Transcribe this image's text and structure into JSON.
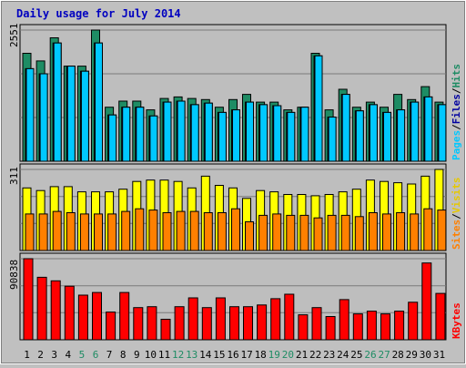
{
  "title": "Daily usage for July 2014",
  "colors": {
    "background": "#c0c0c0",
    "plot_bg": "#bebebe",
    "title": "#0000c0",
    "hits": "#1e8c64",
    "files": "#00c8ff",
    "pages": "#0000a0",
    "sites": "#ff8000",
    "visits": "#ffff00",
    "kbytes": "#ff0000",
    "weekend_label": "#1e8c64",
    "weekday_label": "#000000",
    "grid": "#7a7a7a"
  },
  "panels": {
    "top": {
      "max_label": "2551",
      "legend": [
        "Pages",
        "/",
        "Files",
        "/",
        "Hits"
      ]
    },
    "middle": {
      "max_label": "311",
      "legend": [
        "Sites",
        "/",
        "Visits"
      ]
    },
    "bottom": {
      "max_label": "90838",
      "legend": [
        "KBytes"
      ]
    }
  },
  "chart_data": [
    {
      "type": "bar",
      "title": "Daily usage for July 2014",
      "categories": [
        "1",
        "2",
        "3",
        "4",
        "5",
        "6",
        "7",
        "8",
        "9",
        "10",
        "11",
        "12",
        "13",
        "14",
        "15",
        "16",
        "17",
        "18",
        "19",
        "20",
        "21",
        "22",
        "23",
        "24",
        "25",
        "26",
        "27",
        "28",
        "29",
        "30",
        "31"
      ],
      "weekend_days": [
        "5",
        "6",
        "12",
        "13",
        "19",
        "20",
        "26",
        "27"
      ],
      "ylim": [
        0,
        2551
      ],
      "series": [
        {
          "name": "Hits",
          "values": [
            2100,
            1950,
            2400,
            1850,
            1850,
            2551,
            1050,
            1170,
            1170,
            1000,
            1220,
            1250,
            1220,
            1200,
            1050,
            1200,
            1300,
            1150,
            1150,
            1000,
            1050,
            2100,
            1000,
            1400,
            1050,
            1150,
            1050,
            1300,
            1200,
            1450,
            1150
          ]
        },
        {
          "name": "Files",
          "values": [
            1800,
            1700,
            2300,
            1850,
            1750,
            2300,
            900,
            1050,
            1050,
            880,
            1150,
            1170,
            1100,
            1130,
            950,
            1000,
            1150,
            1100,
            1080,
            950,
            1050,
            2050,
            860,
            1300,
            980,
            1100,
            950,
            1000,
            1150,
            1250,
            1100
          ]
        },
        {
          "name": "Pages",
          "values": [
            1800,
            1700,
            2300,
            1850,
            1750,
            2300,
            900,
            1050,
            1050,
            880,
            1150,
            1170,
            1100,
            1130,
            950,
            1000,
            1150,
            1100,
            1080,
            950,
            1050,
            2050,
            860,
            1300,
            980,
            1100,
            950,
            1000,
            1150,
            1250,
            1100
          ]
        }
      ]
    },
    {
      "type": "bar",
      "categories": [
        "1",
        "2",
        "3",
        "4",
        "5",
        "6",
        "7",
        "8",
        "9",
        "10",
        "11",
        "12",
        "13",
        "14",
        "15",
        "16",
        "17",
        "18",
        "19",
        "20",
        "21",
        "22",
        "23",
        "24",
        "25",
        "26",
        "27",
        "28",
        "29",
        "30",
        "31"
      ],
      "ylim": [
        0,
        311
      ],
      "series": [
        {
          "name": "Visits",
          "values": [
            240,
            230,
            245,
            245,
            225,
            225,
            225,
            235,
            265,
            270,
            270,
            265,
            240,
            285,
            250,
            240,
            200,
            230,
            225,
            215,
            215,
            210,
            215,
            225,
            235,
            270,
            265,
            260,
            255,
            285,
            311
          ]
        },
        {
          "name": "Sites",
          "values": [
            140,
            140,
            150,
            145,
            140,
            140,
            140,
            150,
            160,
            155,
            145,
            150,
            150,
            145,
            145,
            160,
            110,
            135,
            140,
            135,
            135,
            125,
            135,
            135,
            130,
            145,
            140,
            145,
            140,
            160,
            155
          ]
        }
      ]
    },
    {
      "type": "bar",
      "categories": [
        "1",
        "2",
        "3",
        "4",
        "5",
        "6",
        "7",
        "8",
        "9",
        "10",
        "11",
        "12",
        "13",
        "14",
        "15",
        "16",
        "17",
        "18",
        "19",
        "20",
        "21",
        "22",
        "23",
        "24",
        "25",
        "26",
        "27",
        "28",
        "29",
        "30",
        "31"
      ],
      "ylim": [
        0,
        90838
      ],
      "series": [
        {
          "name": "KBytes",
          "values": [
            90838,
            70000,
            66000,
            60000,
            50000,
            53000,
            31000,
            53000,
            36000,
            37000,
            23000,
            37000,
            47000,
            36000,
            47000,
            37000,
            37000,
            39000,
            46000,
            51000,
            28000,
            36000,
            26000,
            45000,
            29000,
            32000,
            29000,
            32000,
            42000,
            86000,
            52000
          ]
        }
      ]
    }
  ]
}
